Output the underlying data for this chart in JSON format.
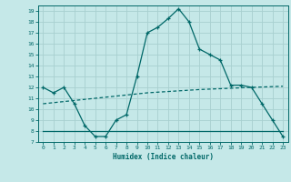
{
  "xlabel": "Humidex (Indice chaleur)",
  "bg_color": "#c5e8e8",
  "grid_color": "#a8d0d0",
  "line_color": "#006868",
  "xlim": [
    -0.5,
    23.5
  ],
  "ylim": [
    7,
    19.5
  ],
  "yticks": [
    7,
    8,
    9,
    10,
    11,
    12,
    13,
    14,
    15,
    16,
    17,
    18,
    19
  ],
  "xticks": [
    0,
    1,
    2,
    3,
    4,
    5,
    6,
    7,
    8,
    9,
    10,
    11,
    12,
    13,
    14,
    15,
    16,
    17,
    18,
    19,
    20,
    21,
    22,
    23
  ],
  "line1_x": [
    0,
    1,
    2,
    3,
    4,
    5,
    6,
    7,
    8,
    9,
    10,
    11,
    12,
    13,
    14,
    15,
    16,
    17,
    18,
    19,
    20,
    21,
    22,
    23
  ],
  "line1_y": [
    12.0,
    11.5,
    12.0,
    10.5,
    8.5,
    7.5,
    7.5,
    9.0,
    9.5,
    13.0,
    17.0,
    17.5,
    18.3,
    19.2,
    18.0,
    15.5,
    15.0,
    14.5,
    12.2,
    12.2,
    12.0,
    10.5,
    9.0,
    7.5
  ],
  "line2_x": [
    0,
    5,
    10,
    15,
    20,
    23
  ],
  "line2_y": [
    10.5,
    11.0,
    11.5,
    11.8,
    12.0,
    12.1
  ],
  "line3_x": [
    0,
    5,
    10,
    15,
    20,
    23
  ],
  "line3_y": [
    8.0,
    8.0,
    8.0,
    8.0,
    8.0,
    8.0
  ]
}
